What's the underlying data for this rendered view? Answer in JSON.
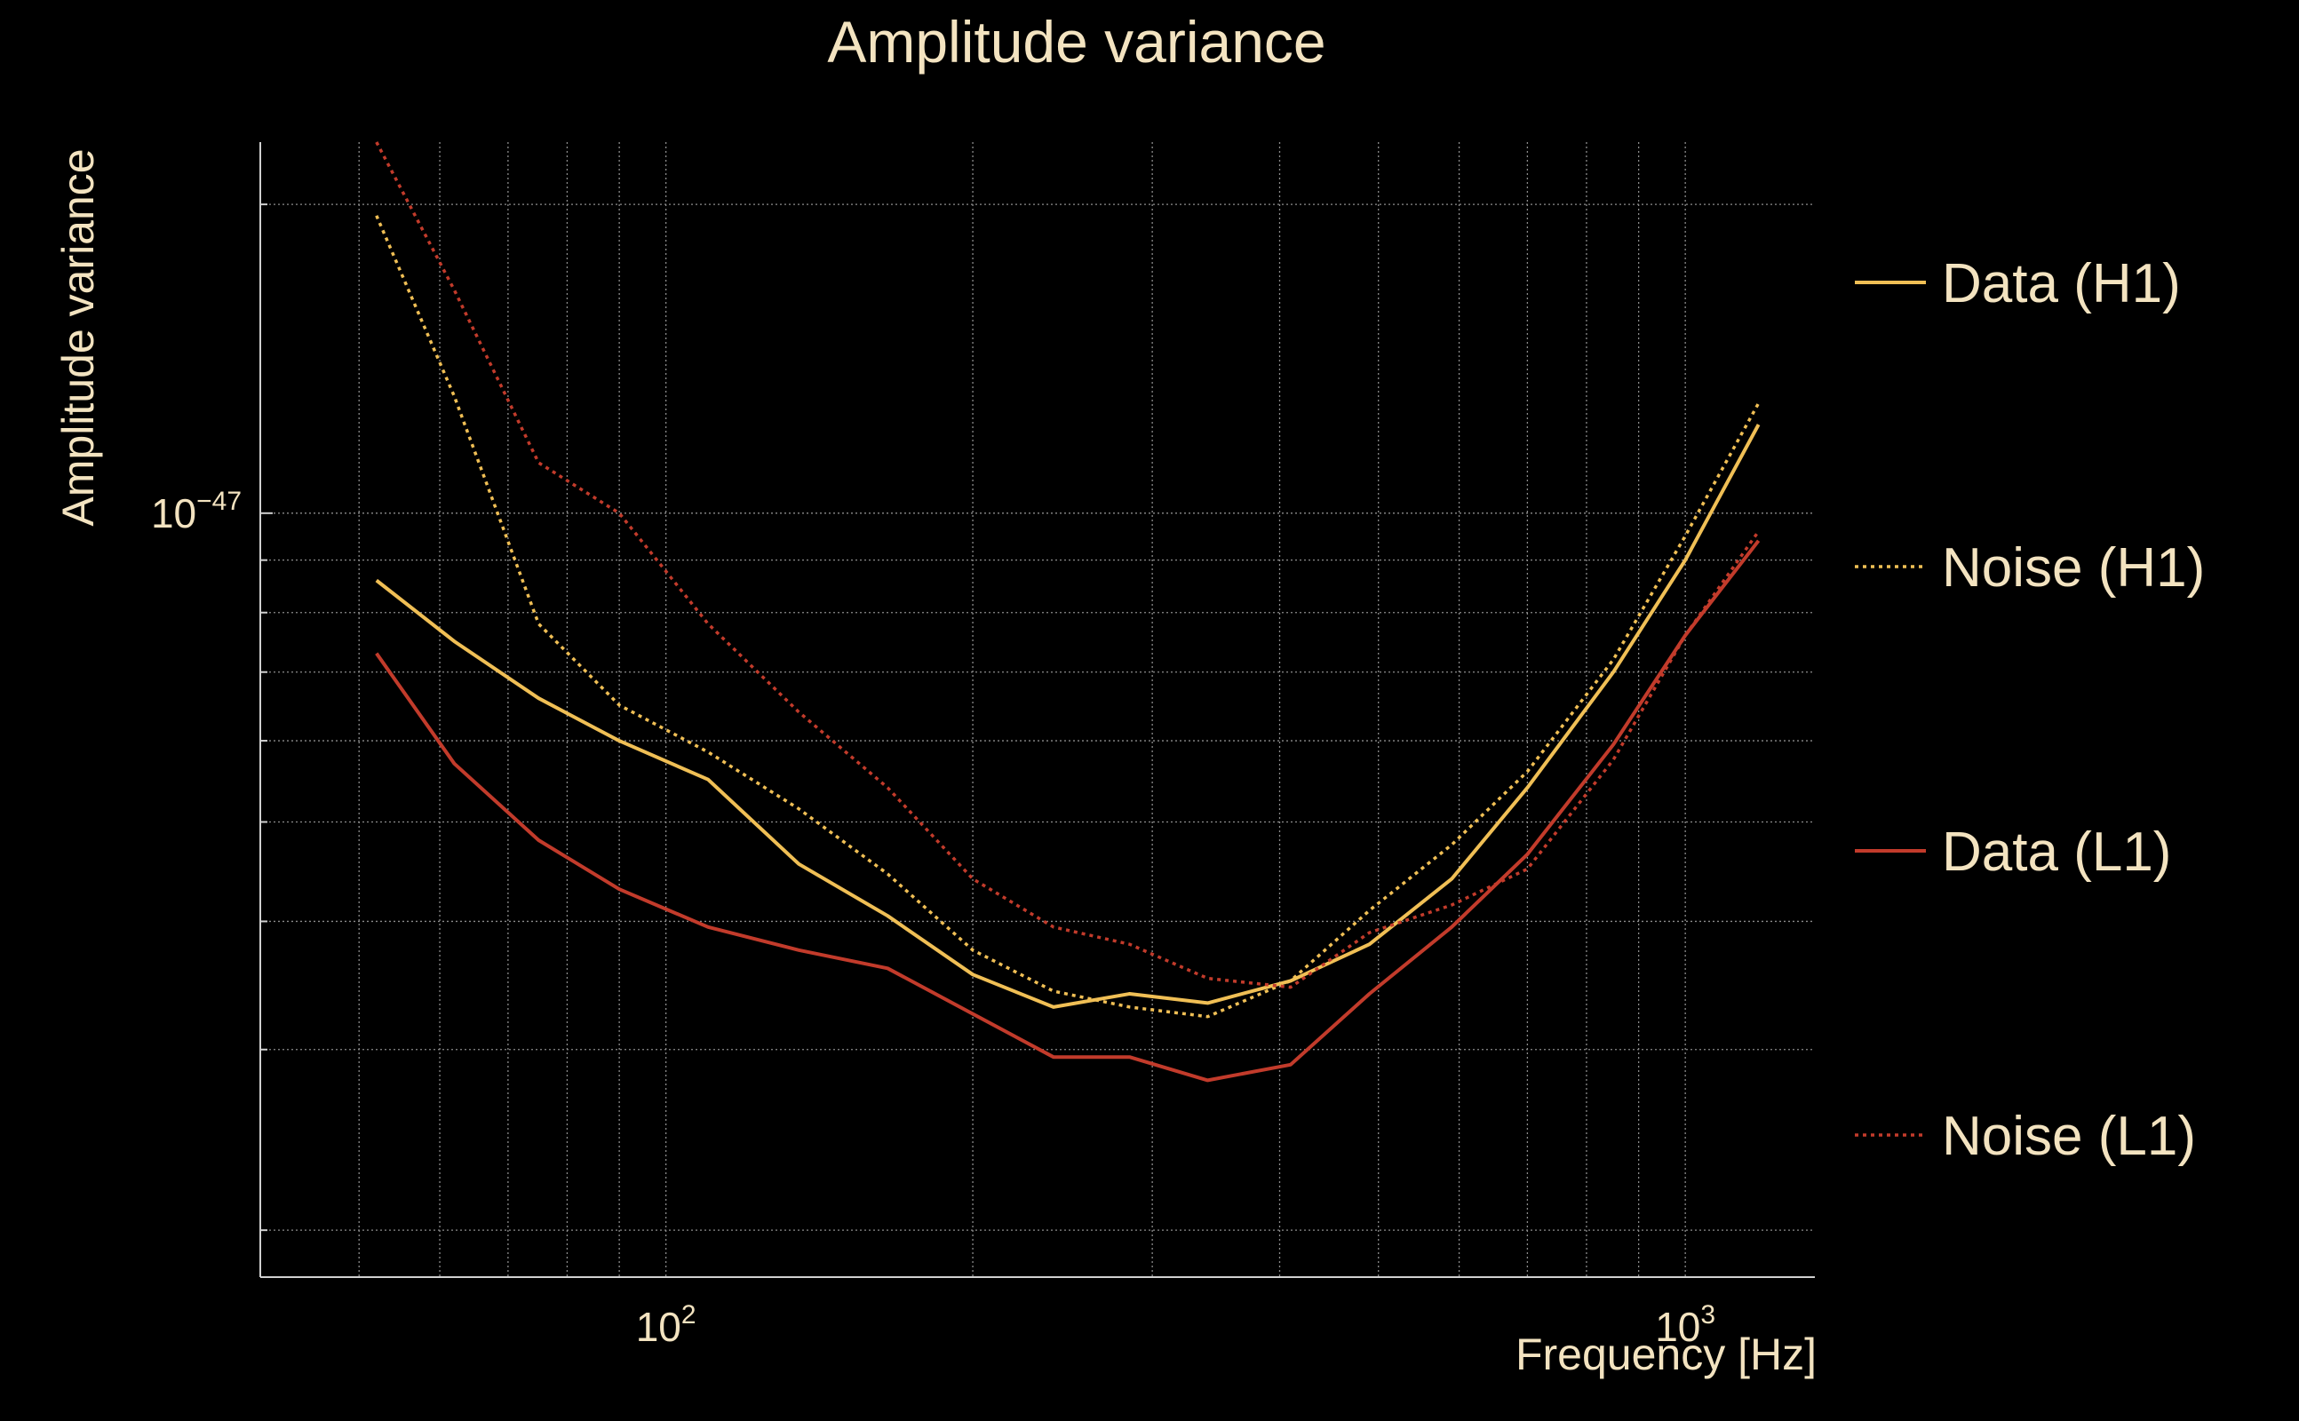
{
  "chart_data": {
    "type": "line",
    "title": "Amplitude variance",
    "xlabel": "Frequency [Hz]",
    "ylabel": "Amplitude variance",
    "x_scale": "log",
    "y_scale": "log",
    "xlim": [
      40,
      1340
    ],
    "ylim": [
      1.8e-48,
      2.3e-47
    ],
    "grid": true,
    "legend_position": "right",
    "x_ticks": [
      {
        "value": 100,
        "base": "10",
        "exp": "2"
      },
      {
        "value": 1000,
        "base": "10",
        "exp": "3"
      }
    ],
    "y_ticks": [
      {
        "value": 1e-47,
        "base": "10",
        "exp": "−47"
      }
    ],
    "x": [
      52,
      62,
      75,
      90,
      110,
      135,
      165,
      200,
      240,
      285,
      340,
      410,
      490,
      590,
      700,
      850,
      1000,
      1180
    ],
    "series": [
      {
        "name": "Data (H1)",
        "color": "#f0bf55",
        "dash": "solid",
        "values": [
          8.6e-48,
          7.5e-48,
          6.6e-48,
          6e-48,
          5.5e-48,
          4.55e-48,
          4.05e-48,
          3.55e-48,
          3.3e-48,
          3.4e-48,
          3.33e-48,
          3.5e-48,
          3.8e-48,
          4.4e-48,
          5.4e-48,
          7e-48,
          9e-48,
          1.22e-47
        ]
      },
      {
        "name": "Noise (H1)",
        "color": "#f0bf55",
        "dash": "dotted",
        "values": [
          1.95e-47,
          1.3e-47,
          7.8e-48,
          6.5e-48,
          5.85e-48,
          5.15e-48,
          4.45e-48,
          3.75e-48,
          3.42e-48,
          3.3e-48,
          3.23e-48,
          3.5e-48,
          4.1e-48,
          4.75e-48,
          5.6e-48,
          7.2e-48,
          9.5e-48,
          1.28e-47
        ]
      },
      {
        "name": "Data (L1)",
        "color": "#c23b2b",
        "dash": "solid",
        "values": [
          7.3e-48,
          5.7e-48,
          4.8e-48,
          4.3e-48,
          3.95e-48,
          3.75e-48,
          3.6e-48,
          3.25e-48,
          2.95e-48,
          2.95e-48,
          2.8e-48,
          2.9e-48,
          3.4e-48,
          3.95e-48,
          4.65e-48,
          5.95e-48,
          7.6e-48,
          9.4e-48
        ]
      },
      {
        "name": "Noise (L1)",
        "color": "#c23b2b",
        "dash": "dotted",
        "values": [
          2.3e-47,
          1.65e-47,
          1.12e-47,
          1e-47,
          7.8e-48,
          6.4e-48,
          5.4e-48,
          4.4e-48,
          3.95e-48,
          3.8e-48,
          3.52e-48,
          3.45e-48,
          3.9e-48,
          4.15e-48,
          4.5e-48,
          5.75e-48,
          7.6e-48,
          9.6e-48
        ]
      }
    ]
  }
}
